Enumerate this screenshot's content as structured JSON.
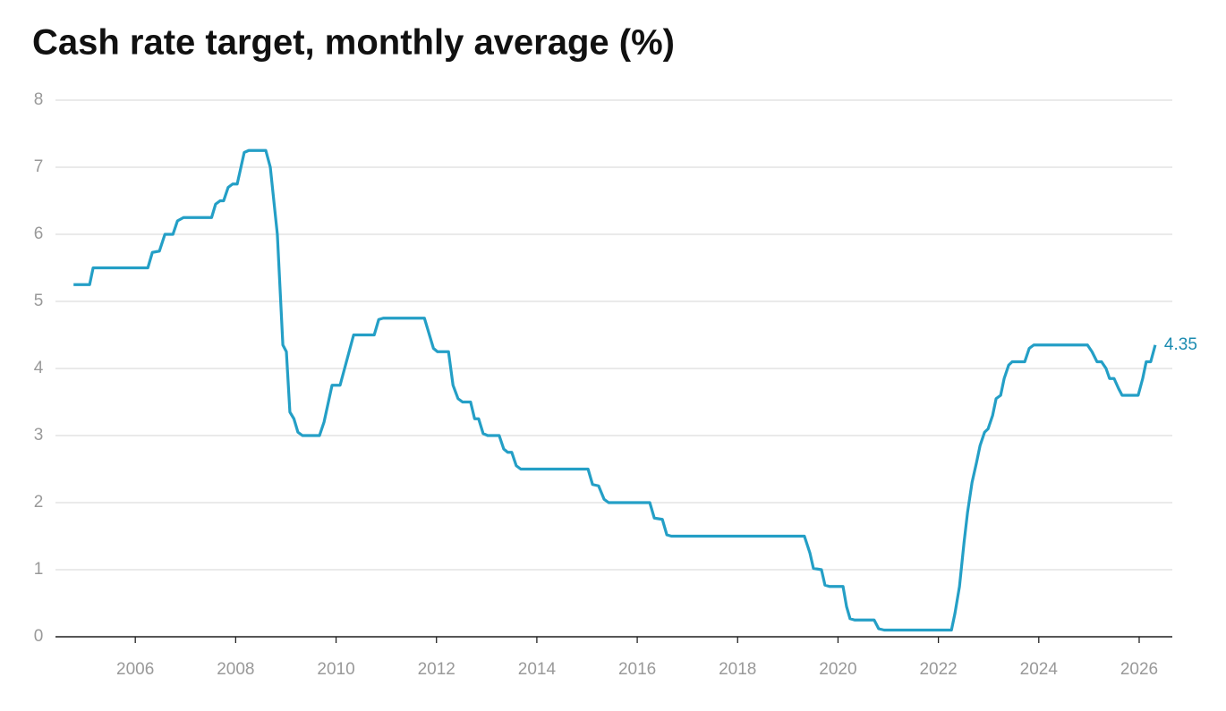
{
  "chart_data": {
    "type": "line",
    "title": "Cash rate target, monthly average (%)",
    "color": "#249fc6",
    "grid": true,
    "xlim": [
      2004.41,
      2026.66
    ],
    "xticks": [
      2006,
      2008,
      2010,
      2012,
      2014,
      2016,
      2018,
      2020,
      2022,
      2024,
      2026
    ],
    "ylim": [
      0,
      8
    ],
    "yticks": [
      0,
      1,
      2,
      3,
      4,
      5,
      6,
      7,
      8
    ],
    "x": [
      2004.77,
      2005.09,
      2005.16,
      2006.25,
      2006.34,
      2006.48,
      2006.59,
      2006.75,
      2006.84,
      2006.96,
      2007.52,
      2007.6,
      2007.69,
      2007.76,
      2007.85,
      2007.94,
      2008.03,
      2008.09,
      2008.17,
      2008.26,
      2008.6,
      2008.69,
      2008.83,
      2008.94,
      2009.01,
      2009.08,
      2009.16,
      2009.24,
      2009.33,
      2009.67,
      2009.76,
      2009.92,
      2010.08,
      2010.35,
      2010.44,
      2010.76,
      2010.85,
      2010.94,
      2011.76,
      2011.94,
      2012.02,
      2012.24,
      2012.33,
      2012.43,
      2012.52,
      2012.68,
      2012.76,
      2012.84,
      2012.93,
      2013.02,
      2013.25,
      2013.34,
      2013.42,
      2013.5,
      2013.59,
      2013.68,
      2015.02,
      2015.11,
      2015.23,
      2015.34,
      2015.43,
      2016.25,
      2016.34,
      2016.5,
      2016.59,
      2016.68,
      2019.33,
      2019.44,
      2019.51,
      2019.67,
      2019.74,
      2019.83,
      2020.1,
      2020.17,
      2020.24,
      2020.33,
      2020.72,
      2020.81,
      2020.92,
      2022.26,
      2022.33,
      2022.42,
      2022.51,
      2022.58,
      2022.67,
      2022.76,
      2022.83,
      2022.92,
      2022.99,
      2023.08,
      2023.15,
      2023.24,
      2023.31,
      2023.4,
      2023.47,
      2023.72,
      2023.81,
      2023.9,
      2024.97,
      2025.06,
      2025.16,
      2025.25,
      2025.34,
      2025.41,
      2025.5,
      2025.59,
      2025.66,
      2025.98,
      2026.07,
      2026.14,
      2026.23,
      2026.32
    ],
    "values": [
      5.25,
      5.25,
      5.5,
      5.5,
      5.73,
      5.75,
      6.0,
      6.0,
      6.2,
      6.25,
      6.25,
      6.45,
      6.5,
      6.5,
      6.7,
      6.75,
      6.75,
      6.95,
      7.22,
      7.25,
      7.25,
      7.0,
      6.0,
      4.35,
      4.25,
      3.35,
      3.25,
      3.05,
      3.0,
      3.0,
      3.2,
      3.75,
      3.75,
      4.5,
      4.5,
      4.5,
      4.73,
      4.75,
      4.75,
      4.3,
      4.25,
      4.25,
      3.75,
      3.55,
      3.5,
      3.5,
      3.25,
      3.25,
      3.03,
      3.0,
      3.0,
      2.8,
      2.75,
      2.75,
      2.55,
      2.5,
      2.5,
      2.27,
      2.25,
      2.05,
      2.0,
      2.0,
      1.77,
      1.75,
      1.52,
      1.5,
      1.5,
      1.25,
      1.02,
      1.0,
      0.77,
      0.75,
      0.75,
      0.45,
      0.27,
      0.25,
      0.25,
      0.12,
      0.1,
      0.1,
      0.35,
      0.75,
      1.4,
      1.85,
      2.3,
      2.6,
      2.85,
      3.05,
      3.1,
      3.3,
      3.55,
      3.6,
      3.85,
      4.05,
      4.1,
      4.1,
      4.3,
      4.35,
      4.35,
      4.25,
      4.1,
      4.1,
      4.0,
      3.85,
      3.85,
      3.7,
      3.6,
      3.6,
      3.85,
      4.1,
      4.1,
      4.35
    ]
  }
}
